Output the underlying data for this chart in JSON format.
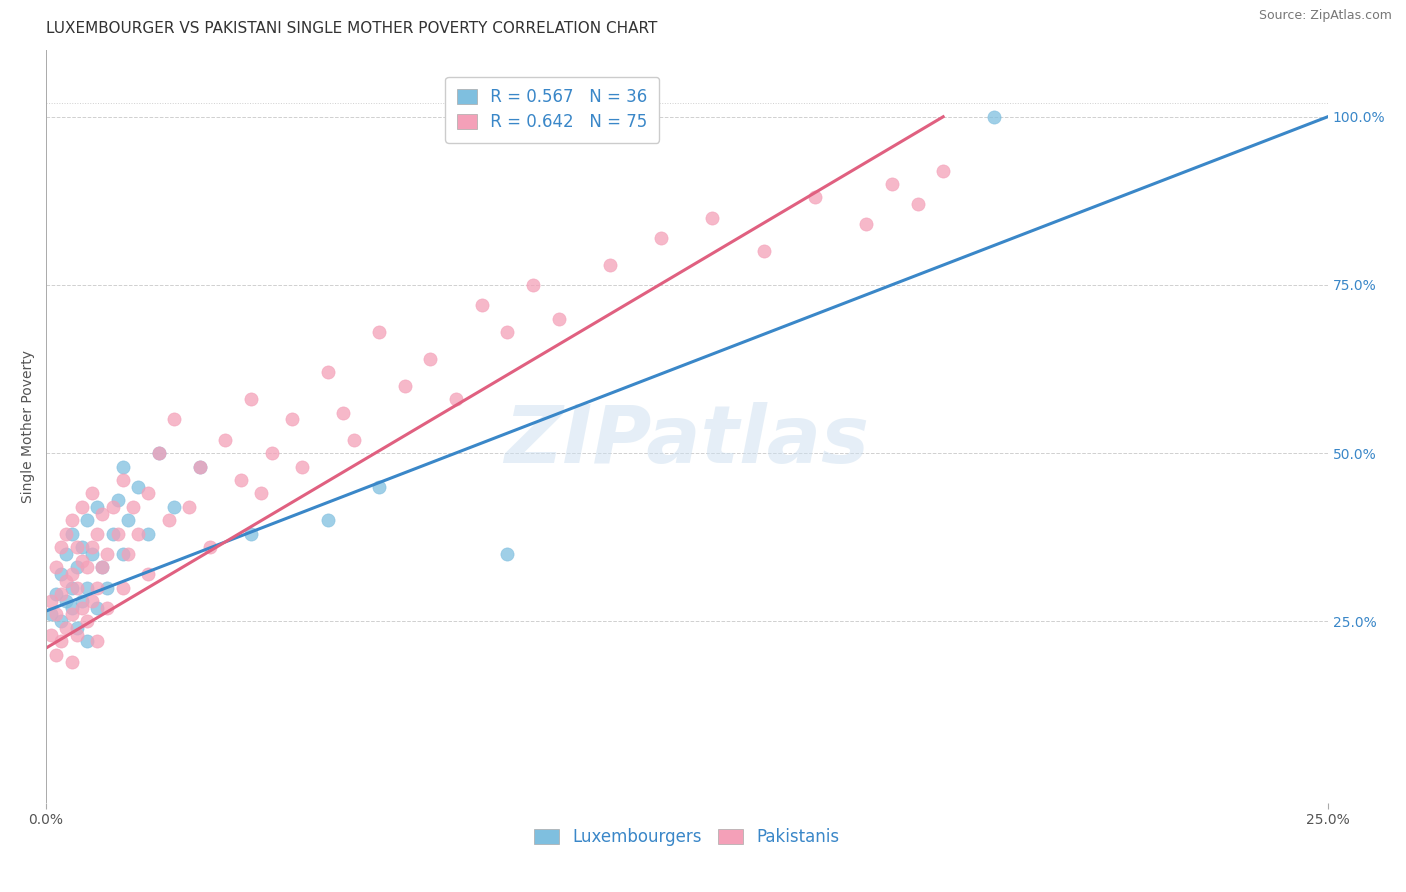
{
  "title": "LUXEMBOURGER VS PAKISTANI SINGLE MOTHER POVERTY CORRELATION CHART",
  "source": "Source: ZipAtlas.com",
  "ylabel": "Single Mother Poverty",
  "xlim": [
    0.0,
    0.25
  ],
  "ylim": [
    -0.02,
    1.1
  ],
  "plot_ylim": [
    0.0,
    1.05
  ],
  "ytick_positions": [
    0.25,
    0.5,
    0.75,
    1.0
  ],
  "ytick_labels": [
    "25.0%",
    "50.0%",
    "75.0%",
    "100.0%"
  ],
  "xtick_positions": [
    0.0,
    0.25
  ],
  "xtick_labels": [
    "0.0%",
    "25.0%"
  ],
  "blue_R": "0.567",
  "blue_N": "36",
  "pink_R": "0.642",
  "pink_N": "75",
  "blue_scatter_color": "#7fbfdf",
  "pink_scatter_color": "#f4a0b8",
  "blue_line_color": "#3a87c8",
  "pink_line_color": "#e06080",
  "blue_legend_color": "#3a87c8",
  "pink_legend_color": "#f4a0b8",
  "watermark_text": "ZIPatlas",
  "watermark_color": "#ccdff0",
  "grid_color": "#d0d0d0",
  "title_color": "#333333",
  "axis_label_color": "#555555",
  "tick_color": "#3a87c8",
  "xtick_color": "#555555",
  "blue_line_x": [
    0.0,
    0.25
  ],
  "blue_line_y": [
    0.265,
    1.0
  ],
  "pink_line_x": [
    0.0,
    0.175
  ],
  "pink_line_y": [
    0.21,
    1.0
  ],
  "blue_scatter_x": [
    0.001,
    0.002,
    0.003,
    0.003,
    0.004,
    0.004,
    0.005,
    0.005,
    0.005,
    0.006,
    0.006,
    0.007,
    0.007,
    0.008,
    0.008,
    0.008,
    0.009,
    0.01,
    0.01,
    0.011,
    0.012,
    0.013,
    0.014,
    0.015,
    0.015,
    0.016,
    0.018,
    0.02,
    0.022,
    0.025,
    0.03,
    0.04,
    0.055,
    0.065,
    0.09,
    0.185
  ],
  "blue_scatter_y": [
    0.26,
    0.29,
    0.25,
    0.32,
    0.28,
    0.35,
    0.27,
    0.3,
    0.38,
    0.24,
    0.33,
    0.28,
    0.36,
    0.22,
    0.3,
    0.4,
    0.35,
    0.27,
    0.42,
    0.33,
    0.3,
    0.38,
    0.43,
    0.35,
    0.48,
    0.4,
    0.45,
    0.38,
    0.5,
    0.42,
    0.48,
    0.38,
    0.4,
    0.45,
    0.35,
    1.0
  ],
  "pink_scatter_x": [
    0.001,
    0.001,
    0.002,
    0.002,
    0.002,
    0.003,
    0.003,
    0.003,
    0.004,
    0.004,
    0.004,
    0.005,
    0.005,
    0.005,
    0.005,
    0.006,
    0.006,
    0.006,
    0.007,
    0.007,
    0.007,
    0.008,
    0.008,
    0.009,
    0.009,
    0.009,
    0.01,
    0.01,
    0.01,
    0.011,
    0.011,
    0.012,
    0.012,
    0.013,
    0.014,
    0.015,
    0.015,
    0.016,
    0.017,
    0.018,
    0.02,
    0.02,
    0.022,
    0.024,
    0.025,
    0.028,
    0.03,
    0.032,
    0.035,
    0.038,
    0.04,
    0.042,
    0.044,
    0.048,
    0.05,
    0.055,
    0.058,
    0.06,
    0.065,
    0.07,
    0.075,
    0.08,
    0.085,
    0.09,
    0.095,
    0.1,
    0.11,
    0.12,
    0.13,
    0.14,
    0.15,
    0.16,
    0.165,
    0.17,
    0.175
  ],
  "pink_scatter_y": [
    0.23,
    0.28,
    0.2,
    0.26,
    0.33,
    0.22,
    0.29,
    0.36,
    0.24,
    0.31,
    0.38,
    0.19,
    0.26,
    0.32,
    0.4,
    0.23,
    0.3,
    0.36,
    0.27,
    0.34,
    0.42,
    0.25,
    0.33,
    0.28,
    0.36,
    0.44,
    0.22,
    0.3,
    0.38,
    0.33,
    0.41,
    0.27,
    0.35,
    0.42,
    0.38,
    0.3,
    0.46,
    0.35,
    0.42,
    0.38,
    0.32,
    0.44,
    0.5,
    0.4,
    0.55,
    0.42,
    0.48,
    0.36,
    0.52,
    0.46,
    0.58,
    0.44,
    0.5,
    0.55,
    0.48,
    0.62,
    0.56,
    0.52,
    0.68,
    0.6,
    0.64,
    0.58,
    0.72,
    0.68,
    0.75,
    0.7,
    0.78,
    0.82,
    0.85,
    0.8,
    0.88,
    0.84,
    0.9,
    0.87,
    0.92
  ],
  "background_color": "#ffffff",
  "title_fontsize": 11,
  "label_fontsize": 10,
  "tick_fontsize": 10,
  "legend_fontsize": 12,
  "source_fontsize": 9
}
